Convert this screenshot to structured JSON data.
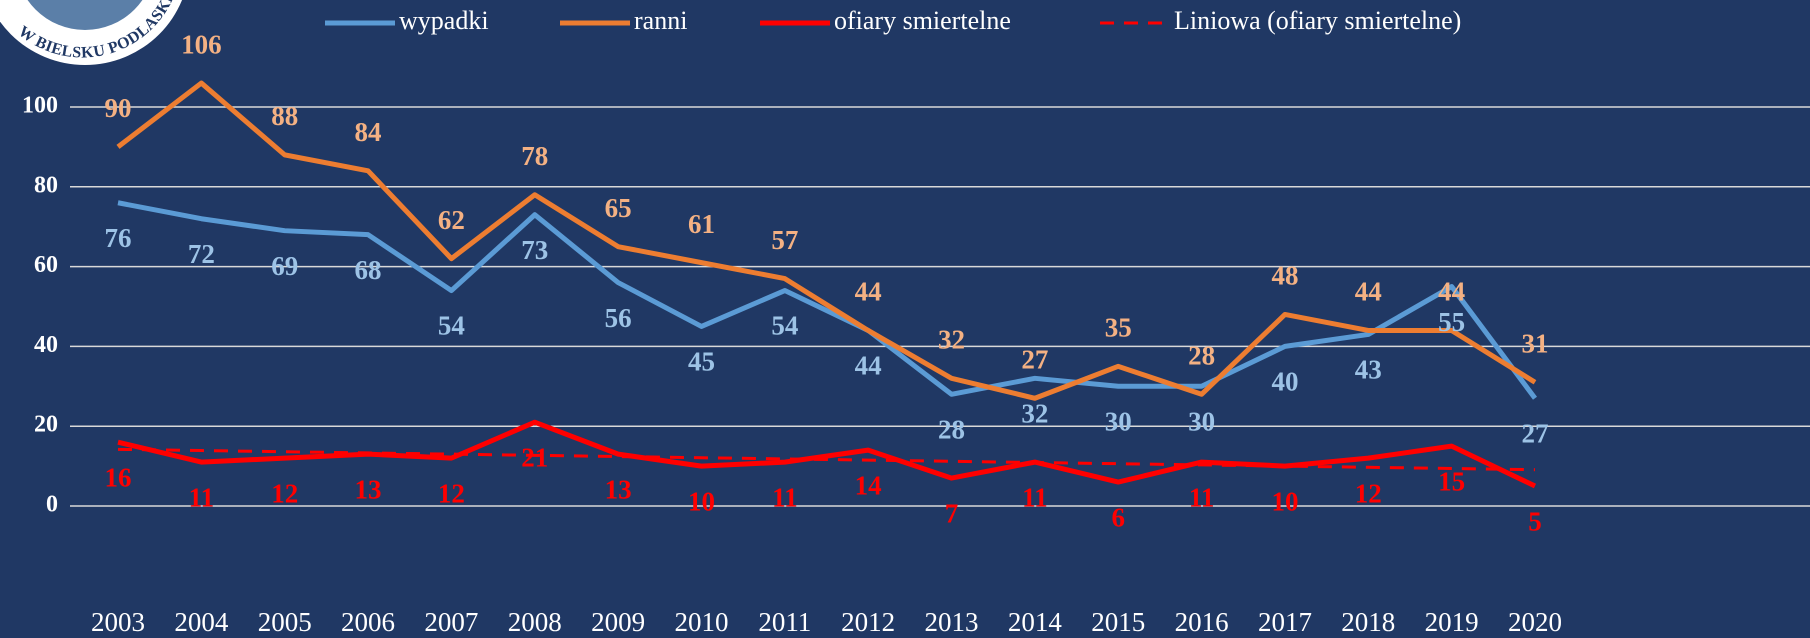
{
  "logo_text": "W BIELSKU PODLASKIM",
  "chart_data": {
    "type": "line",
    "categories": [
      "2003",
      "2004",
      "2005",
      "2006",
      "2007",
      "2008",
      "2009",
      "2010",
      "2011",
      "2012",
      "2013",
      "2014",
      "2015",
      "2016",
      "2017",
      "2018",
      "2019",
      "2020"
    ],
    "series": [
      {
        "name": "wypadki",
        "color": "#5b9bd5",
        "label_color": "#9dc3e6",
        "values": [
          76,
          72,
          69,
          68,
          54,
          73,
          56,
          45,
          54,
          44,
          28,
          32,
          30,
          30,
          40,
          43,
          55,
          27
        ]
      },
      {
        "name": "ranni",
        "color": "#ed7d31",
        "label_color": "#f4b183",
        "values": [
          90,
          106,
          88,
          84,
          62,
          78,
          65,
          61,
          57,
          44,
          32,
          27,
          35,
          28,
          48,
          44,
          44,
          31
        ]
      },
      {
        "name": "ofiary smiertelne",
        "color": "#ff0000",
        "label_color": "#ff0000",
        "values": [
          16,
          11,
          12,
          13,
          12,
          21,
          13,
          10,
          11,
          14,
          7,
          11,
          6,
          11,
          10,
          12,
          15,
          5
        ]
      },
      {
        "name": "Liniowa (ofiary smiertelne)",
        "color": "#ff0000",
        "dashed": true,
        "values": [
          14.2,
          13.9,
          13.6,
          13.3,
          13.0,
          12.7,
          12.4,
          12.1,
          11.8,
          11.5,
          11.2,
          10.9,
          10.6,
          10.3,
          10.0,
          9.7,
          9.4,
          9.1
        ]
      }
    ],
    "ylim": [
      0,
      120
    ],
    "yticks": [
      0,
      20,
      40,
      60,
      80,
      100
    ],
    "grid": true
  }
}
